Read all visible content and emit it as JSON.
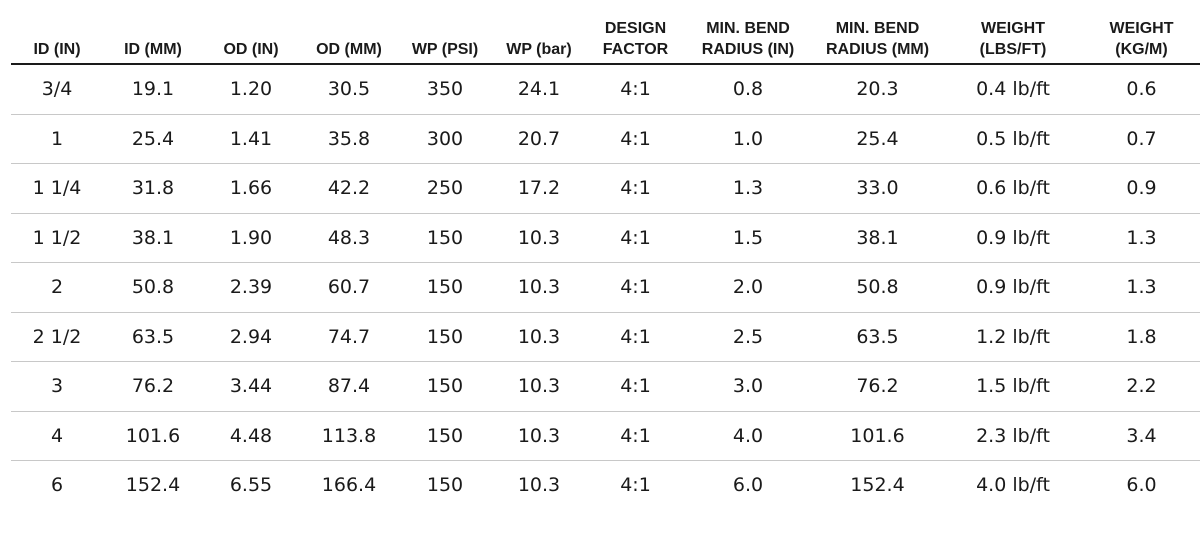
{
  "table": {
    "headers": [
      {
        "l1": "",
        "l2": "ID (IN)"
      },
      {
        "l1": "",
        "l2": "ID (MM)"
      },
      {
        "l1": "",
        "l2": "OD (IN)"
      },
      {
        "l1": "",
        "l2": "OD (MM)"
      },
      {
        "l1": "",
        "l2": "WP (PSI)"
      },
      {
        "l1": "",
        "l2": "WP (bar)"
      },
      {
        "l1": "DESIGN",
        "l2": "FACTOR"
      },
      {
        "l1": "MIN. BEND",
        "l2": "RADIUS (IN)"
      },
      {
        "l1": "MIN. BEND",
        "l2": "RADIUS (MM)"
      },
      {
        "l1": "WEIGHT",
        "l2": "(LBS/FT)"
      },
      {
        "l1": "WEIGHT",
        "l2": "(KG/M)"
      }
    ],
    "rows": [
      [
        "3/4",
        "19.1",
        "1.20",
        "30.5",
        "350",
        "24.1",
        "4:1",
        "0.8",
        "20.3",
        "0.4 lb/ft",
        "0.6"
      ],
      [
        "1",
        "25.4",
        "1.41",
        "35.8",
        "300",
        "20.7",
        "4:1",
        "1.0",
        "25.4",
        "0.5 lb/ft",
        "0.7"
      ],
      [
        "1 1/4",
        "31.8",
        "1.66",
        "42.2",
        "250",
        "17.2",
        "4:1",
        "1.3",
        "33.0",
        "0.6 lb/ft",
        "0.9"
      ],
      [
        "1 1/2",
        "38.1",
        "1.90",
        "48.3",
        "150",
        "10.3",
        "4:1",
        "1.5",
        "38.1",
        "0.9 lb/ft",
        "1.3"
      ],
      [
        "2",
        "50.8",
        "2.39",
        "60.7",
        "150",
        "10.3",
        "4:1",
        "2.0",
        "50.8",
        "0.9 lb/ft",
        "1.3"
      ],
      [
        "2 1/2",
        "63.5",
        "2.94",
        "74.7",
        "150",
        "10.3",
        "4:1",
        "2.5",
        "63.5",
        "1.2 lb/ft",
        "1.8"
      ],
      [
        "3",
        "76.2",
        "3.44",
        "87.4",
        "150",
        "10.3",
        "4:1",
        "3.0",
        "76.2",
        "1.5 lb/ft",
        "2.2"
      ],
      [
        "4",
        "101.6",
        "4.48",
        "113.8",
        "150",
        "10.3",
        "4:1",
        "4.0",
        "101.6",
        "2.3 lb/ft",
        "3.4"
      ],
      [
        "6",
        "152.4",
        "6.55",
        "166.4",
        "150",
        "10.3",
        "4:1",
        "6.0",
        "152.4",
        "4.0 lb/ft",
        "6.0"
      ]
    ]
  }
}
